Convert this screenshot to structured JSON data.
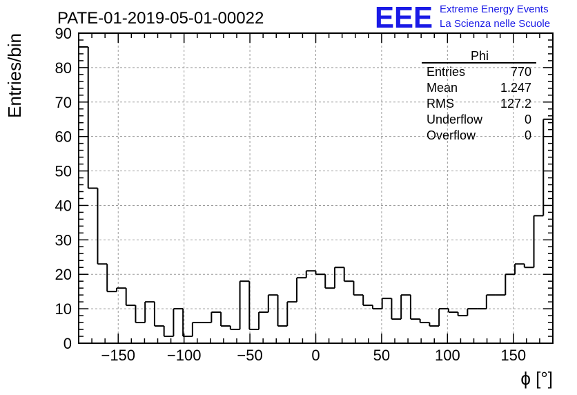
{
  "chart_data": {
    "type": "histogram",
    "title": "PATE-01-2019-05-01-00022",
    "xlabel": "ϕ [°]",
    "ylabel": "Entries/bin",
    "xlim": [
      -180,
      180
    ],
    "ylim": [
      0,
      90
    ],
    "grid": true,
    "bin_width": 7.2,
    "x_ticks": [
      -150,
      -100,
      -50,
      0,
      50,
      100,
      150
    ],
    "x_tick_labels": [
      "−150",
      "−100",
      "−50",
      "0",
      "50",
      "100",
      "150"
    ],
    "y_ticks": [
      0,
      10,
      20,
      30,
      40,
      50,
      60,
      70,
      80,
      90
    ],
    "y_tick_labels": [
      "0",
      "10",
      "20",
      "30",
      "40",
      "50",
      "60",
      "70",
      "80",
      "90"
    ],
    "values": [
      86,
      45,
      23,
      15,
      16,
      11,
      6,
      12,
      5,
      2,
      10,
      2,
      6,
      6,
      9,
      5,
      4,
      18,
      4,
      9,
      14,
      5,
      12,
      19,
      21,
      20,
      16,
      22,
      18,
      14,
      11,
      10,
      13,
      7,
      14,
      7,
      6,
      5,
      10,
      9,
      8,
      10,
      10,
      14,
      14,
      20,
      23,
      22,
      37,
      65
    ],
    "stats_box": {
      "title": "Phi",
      "rows": [
        {
          "label": "Entries",
          "value": "770"
        },
        {
          "label": "Mean",
          "value": "1.247"
        },
        {
          "label": "RMS",
          "value": "127.2"
        },
        {
          "label": "Underflow",
          "value": "0"
        },
        {
          "label": "Overflow",
          "value": "0"
        }
      ]
    }
  },
  "logo": {
    "mark": "EEE",
    "line1": "Extreme Energy Events",
    "line2": "La Scienza nelle Scuole",
    "color": "#1a1ae6"
  }
}
